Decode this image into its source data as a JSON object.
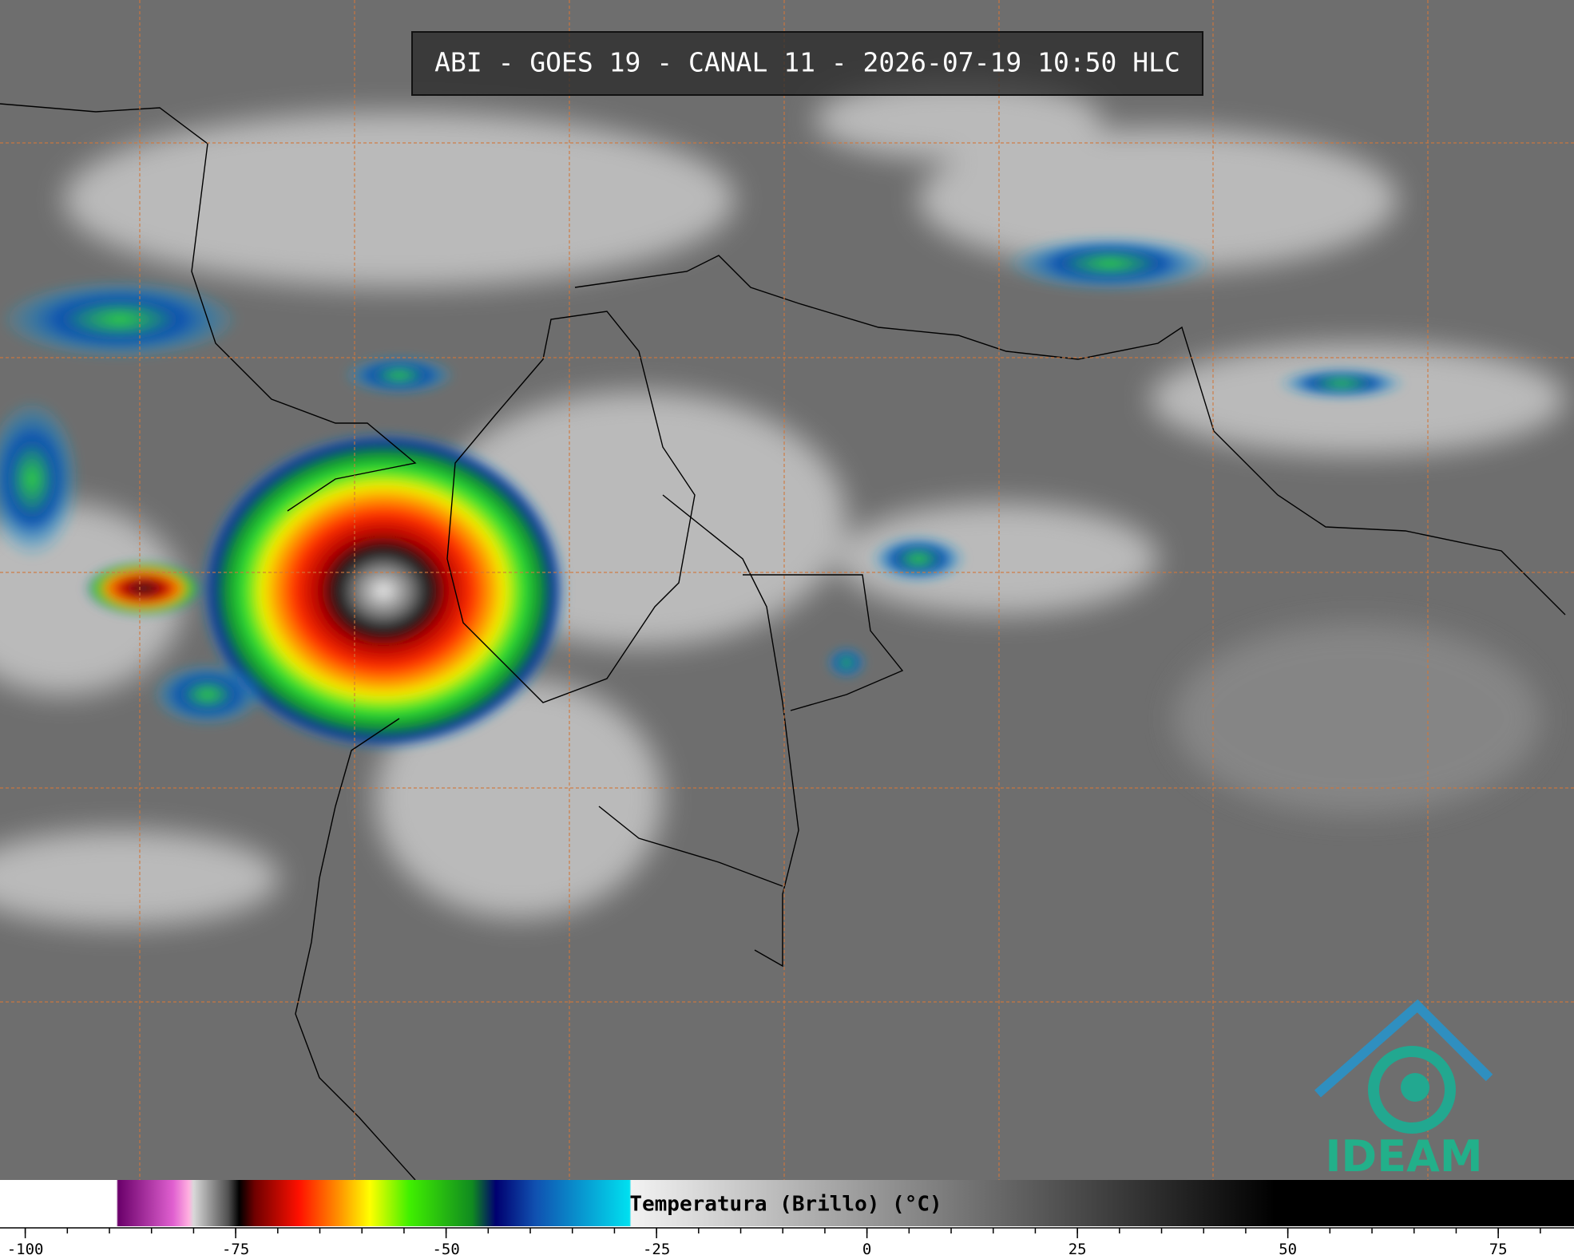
{
  "header": {
    "title": "ABI - GOES 19 - CANAL 11 - 2026-07-19 10:50 HLC"
  },
  "logo": {
    "text": "IDEAM"
  },
  "chart_data": {
    "type": "colorbar",
    "title": "Temperatura (Brillo) (°C)",
    "xlim": [
      -103,
      84
    ],
    "xticks": [
      -100,
      -75,
      -50,
      -25,
      0,
      25,
      50,
      75
    ],
    "xminorticks": [
      -100,
      -95,
      -90,
      -85,
      -80,
      -75,
      -70,
      -65,
      -60,
      -55,
      -50,
      -45,
      -40,
      -35,
      -30,
      -25,
      -20,
      -15,
      -10,
      -5,
      0,
      5,
      10,
      15,
      20,
      25,
      30,
      35,
      40,
      45,
      50,
      55,
      60,
      65,
      70,
      75,
      80
    ]
  }
}
